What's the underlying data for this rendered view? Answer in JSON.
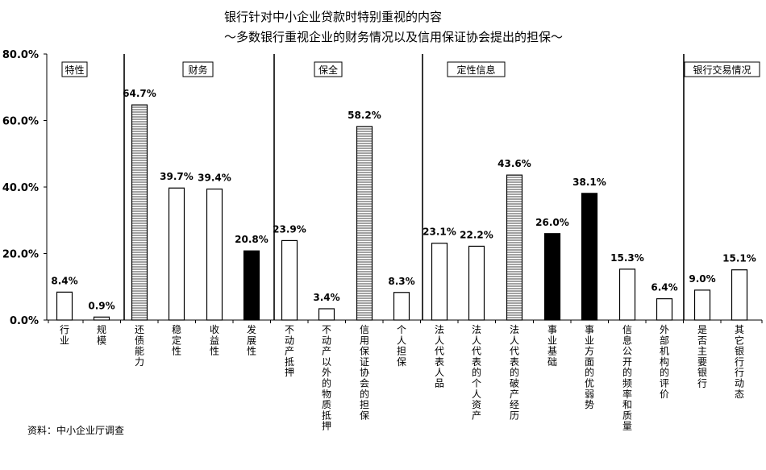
{
  "title_line1": "银行针对中小企业贷款时特别重视的内容",
  "title_line2": "～多数银行重视企业的财务情况以及信用保证协会提出的担保～",
  "source": "资料：中小企业厅调查",
  "chart_data": {
    "type": "bar",
    "ylim": [
      0,
      80
    ],
    "yticks": [
      "0.0%",
      "20.0%",
      "40.0%",
      "60.0%",
      "80.0%"
    ],
    "ytick_values": [
      0,
      20,
      40,
      60,
      80
    ],
    "groups": [
      {
        "name": "特性",
        "start": 0,
        "end": 1
      },
      {
        "name": "财务",
        "start": 2,
        "end": 5
      },
      {
        "name": "保全",
        "start": 6,
        "end": 9
      },
      {
        "name": "定性信息",
        "start": 10,
        "end": 15
      },
      {
        "name": "银行交易情况",
        "start": 16,
        "end": 17
      }
    ],
    "categories": [
      "行业",
      "规模",
      "还债能力",
      "稳定性",
      "收益性",
      "发展性",
      "不动产抵押",
      "不动产以外的物质抵押",
      "信用保证协会的担保",
      "个人担保",
      "法人代表人品",
      "法人代表的个人资产",
      "法人代表的破产经历",
      "事业基础",
      "事业方面的优弱势",
      "信息公开的频率和质量",
      "外部机构的评价",
      "是否主要银行",
      "其它银行行动态"
    ],
    "values": [
      8.4,
      0.9,
      64.7,
      39.7,
      39.4,
      20.8,
      23.9,
      3.4,
      58.2,
      8.3,
      23.1,
      22.2,
      43.6,
      26.0,
      38.1,
      15.3,
      6.4,
      9.0,
      15.1
    ],
    "value_labels": [
      "8.4%",
      "0.9%",
      "64.7%",
      "39.7%",
      "39.4%",
      "20.8%",
      "23.9%",
      "3.4%",
      "58.2%",
      "8.3%",
      "23.1%",
      "22.2%",
      "43.6%",
      "26.0%",
      "38.1%",
      "15.3%",
      "6.4%",
      "9.0%",
      "15.1%"
    ],
    "styles": [
      "white",
      "white",
      "hatched",
      "white",
      "white",
      "black",
      "white",
      "white",
      "hatched",
      "white",
      "white",
      "white",
      "hatched",
      "black",
      "black",
      "white",
      "white",
      "white",
      "white"
    ]
  }
}
